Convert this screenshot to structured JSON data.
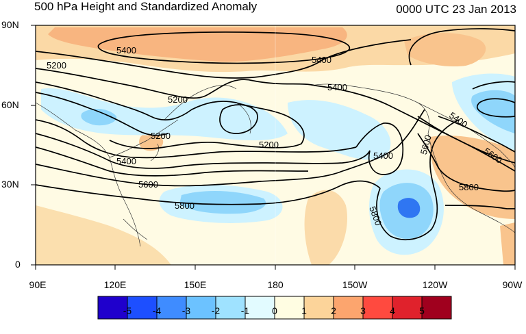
{
  "header": {
    "title": "500 hPa Height and Standardized Anomaly",
    "valid_time": "0000 UTC 23 Jan 2013"
  },
  "axes": {
    "y_labels": [
      "90N",
      "60N",
      "30N",
      "0"
    ],
    "x_labels": [
      "90E",
      "120E",
      "150E",
      "180",
      "150W",
      "120W",
      "90W"
    ]
  },
  "contour_labels": [
    "5400",
    "5400",
    "5400",
    "5200",
    "5200",
    "5200",
    "5200",
    "5400",
    "5600",
    "5800",
    "5400",
    "5600",
    "5400",
    "5600",
    "5800",
    "5800"
  ],
  "colorbar": {
    "labels": [
      "-5",
      "-4",
      "-3",
      "-2",
      "-1",
      "0",
      "1",
      "2",
      "3",
      "4",
      "5"
    ],
    "colors": [
      "#1f00cc",
      "#1d4fff",
      "#3f8cff",
      "#6cc2ff",
      "#9fe2ff",
      "#e2fbff",
      "#fffde2",
      "#fcd49a",
      "#fca56e",
      "#ff4a3f",
      "#e0222c",
      "#a0001e"
    ]
  },
  "colors": {
    "positive_weak": "#fbdfae",
    "positive_mid": "#f9bb82",
    "negative_weak": "#cdf2ff",
    "negative_mid": "#8fd6fb",
    "negative_strong": "#2f76f2"
  }
}
